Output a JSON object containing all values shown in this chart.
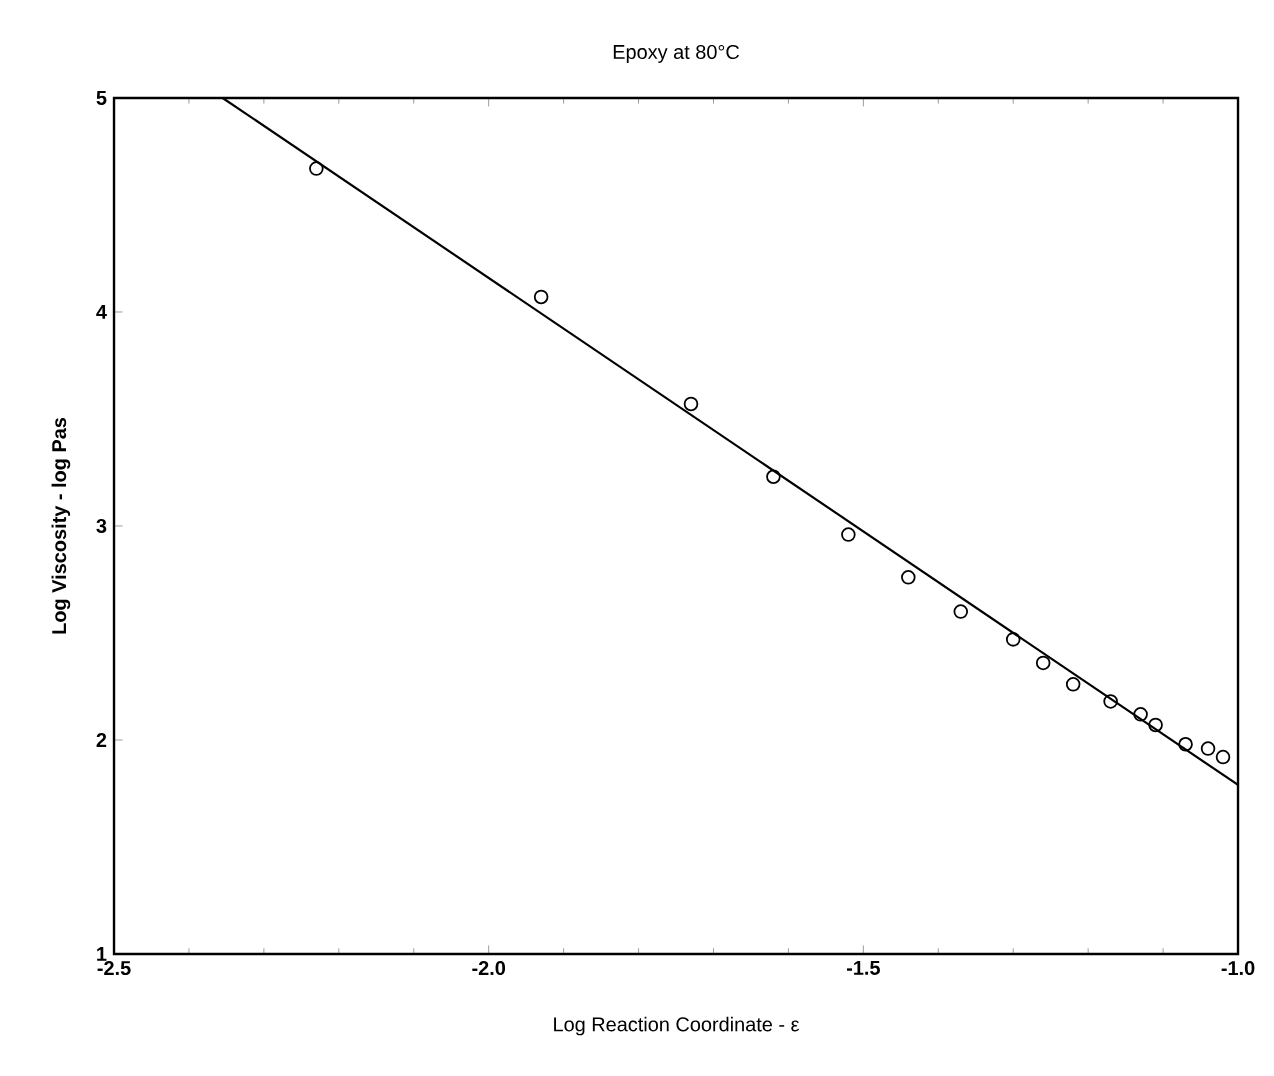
{
  "chart_data": {
    "type": "scatter",
    "title": "Epoxy at 80°C",
    "xlabel": "Log Reaction Coordinate - ε",
    "ylabel": "Log Viscosity - log Pas",
    "xlim": [
      -2.5,
      -1.0
    ],
    "ylim": [
      1,
      5
    ],
    "xticks": [
      {
        "value": -2.5,
        "label": "-2.5"
      },
      {
        "value": -2.0,
        "label": "-2.0"
      },
      {
        "value": -1.5,
        "label": "-1.5"
      },
      {
        "value": -1.0,
        "label": "-1.0"
      }
    ],
    "yticks": [
      1,
      2,
      3,
      4,
      5
    ],
    "grid": false,
    "series": [
      {
        "color": "#000000",
        "marker": "circle",
        "x": [
          -2.23,
          -1.93,
          -1.73,
          -1.62,
          -1.52,
          -1.44,
          -1.37,
          -1.3,
          -1.26,
          -1.22,
          -1.17,
          -1.13,
          -1.11,
          -1.07,
          -1.04,
          -1.02
        ],
        "values": [
          4.67,
          4.07,
          3.57,
          3.23,
          2.96,
          2.76,
          2.6,
          2.47,
          2.36,
          2.26,
          2.18,
          2.12,
          2.07,
          1.98,
          1.96,
          1.92
        ]
      },
      {
        "type": "line",
        "color": "#000000",
        "line_style": "solid",
        "x": [
          -2.355,
          -1.0
        ],
        "values": [
          5.0,
          1.79
        ]
      }
    ]
  }
}
